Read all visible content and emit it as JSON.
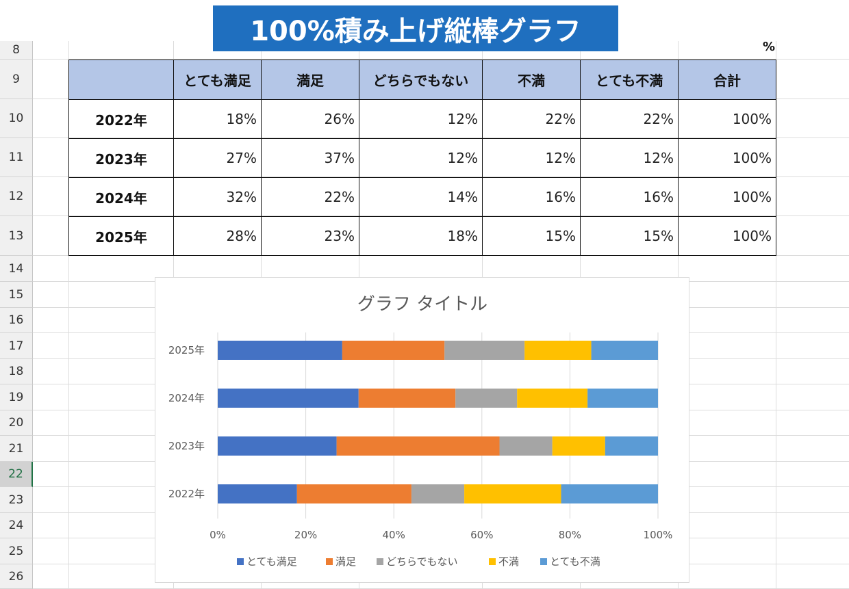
{
  "banner": {
    "title": "100%積み上げ縦棒グラフ"
  },
  "sheet": {
    "row_numbers": [
      "8",
      "9",
      "10",
      "11",
      "12",
      "13",
      "14",
      "15",
      "16",
      "17",
      "18",
      "19",
      "20",
      "21",
      "22",
      "23",
      "24",
      "25",
      "26"
    ],
    "selected_row": "22",
    "unit_label": "%"
  },
  "table": {
    "headers": [
      "",
      "とても満足",
      "満足",
      "どちらでもない",
      "不満",
      "とても不満",
      "合計"
    ],
    "rows": [
      {
        "year": "2022年",
        "values": [
          "18%",
          "26%",
          "12%",
          "22%",
          "22%",
          "100%"
        ]
      },
      {
        "year": "2023年",
        "values": [
          "27%",
          "37%",
          "12%",
          "12%",
          "12%",
          "100%"
        ]
      },
      {
        "year": "2024年",
        "values": [
          "32%",
          "22%",
          "14%",
          "16%",
          "16%",
          "100%"
        ]
      },
      {
        "year": "2025年",
        "values": [
          "28%",
          "23%",
          "18%",
          "15%",
          "15%",
          "100%"
        ]
      }
    ]
  },
  "chart_data": {
    "type": "bar",
    "orientation": "horizontal",
    "stacked": "percent",
    "title": "グラフ タイトル",
    "categories": [
      "2022年",
      "2023年",
      "2024年",
      "2025年"
    ],
    "series": [
      {
        "name": "とても満足",
        "values": [
          18,
          27,
          32,
          28
        ],
        "color": "#4472c4"
      },
      {
        "name": "満足",
        "values": [
          26,
          37,
          22,
          23
        ],
        "color": "#ed7d31"
      },
      {
        "name": "どちらでもない",
        "values": [
          12,
          12,
          14,
          18
        ],
        "color": "#a5a5a5"
      },
      {
        "name": "不満",
        "values": [
          22,
          12,
          16,
          15
        ],
        "color": "#ffc000"
      },
      {
        "name": "とても不満",
        "values": [
          22,
          12,
          16,
          15
        ],
        "color": "#5b9bd5"
      }
    ],
    "xticks": [
      "0%",
      "20%",
      "40%",
      "60%",
      "80%",
      "100%"
    ],
    "xlim": [
      0,
      100
    ],
    "grid": true,
    "legend": "bottom"
  }
}
